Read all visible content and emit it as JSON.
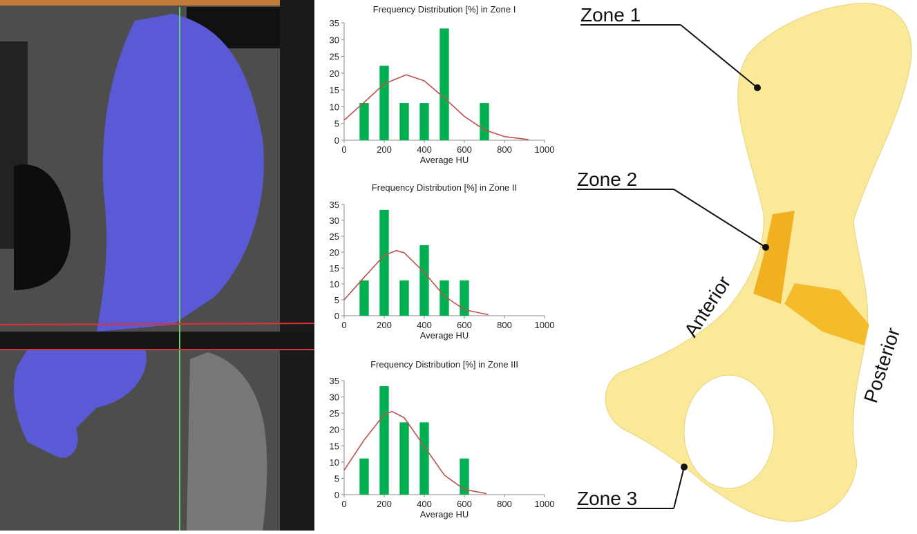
{
  "chart_data": [
    {
      "type": "bar",
      "title": "Frequency Distribution [%] in Zone I",
      "x_label": "Average HU",
      "xlim": [
        0,
        1000
      ],
      "xticks": [
        0,
        200,
        400,
        600,
        800,
        1000
      ],
      "ylim": [
        0,
        35
      ],
      "yticks": [
        0,
        5,
        10,
        15,
        20,
        25,
        30,
        35
      ],
      "series": [
        {
          "type": "bar",
          "color": "#00b050",
          "x": [
            100,
            200,
            300,
            400,
            500,
            700
          ],
          "values": [
            11.1,
            22.2,
            11.1,
            11.1,
            33.3,
            11.1
          ]
        },
        {
          "type": "line",
          "color": "#c0504d",
          "x": [
            0,
            100,
            200,
            310,
            400,
            500,
            600,
            700,
            800,
            920
          ],
          "values": [
            6.0,
            11.3,
            16.8,
            19.5,
            17.7,
            12.6,
            7.1,
            3.1,
            1.1,
            0.2
          ]
        }
      ]
    },
    {
      "type": "bar",
      "title": "Frequency Distribution [%] in Zone II",
      "x_label": "Average HU",
      "xlim": [
        0,
        1000
      ],
      "xticks": [
        0,
        200,
        400,
        600,
        800,
        1000
      ],
      "ylim": [
        0,
        35
      ],
      "yticks": [
        0,
        5,
        10,
        15,
        20,
        25,
        30,
        35
      ],
      "series": [
        {
          "type": "bar",
          "color": "#00b050",
          "x": [
            100,
            200,
            300,
            400,
            500,
            600
          ],
          "values": [
            11.1,
            33.3,
            11.1,
            22.2,
            11.1,
            11.1
          ]
        },
        {
          "type": "line",
          "color": "#c0504d",
          "x": [
            0,
            100,
            200,
            260,
            300,
            400,
            500,
            600,
            720
          ],
          "values": [
            5.0,
            12.1,
            19.0,
            20.5,
            19.8,
            13.6,
            6.2,
            1.9,
            0.3
          ]
        }
      ]
    },
    {
      "type": "bar",
      "title": "Frequency Distribution [%] in Zone III",
      "x_label": "Average HU",
      "xlim": [
        0,
        1000
      ],
      "xticks": [
        0,
        200,
        400,
        600,
        800,
        1000
      ],
      "ylim": [
        0,
        35
      ],
      "yticks": [
        0,
        5,
        10,
        15,
        20,
        25,
        30,
        35
      ],
      "series": [
        {
          "type": "bar",
          "color": "#00b050",
          "x": [
            100,
            200,
            300,
            400,
            600
          ],
          "values": [
            11.1,
            33.3,
            22.2,
            22.2,
            11.1
          ]
        },
        {
          "type": "line",
          "color": "#c0504d",
          "x": [
            0,
            100,
            200,
            240,
            300,
            400,
            500,
            600,
            710
          ],
          "values": [
            7.5,
            16.8,
            24.6,
            25.5,
            23.6,
            14.8,
            6.0,
            1.6,
            0.3
          ]
        }
      ]
    }
  ],
  "diagram": {
    "zone_labels": [
      "Zone 1",
      "Zone 2",
      "Zone 3"
    ],
    "anterior": "Anterior",
    "posterior": "Posterior"
  }
}
